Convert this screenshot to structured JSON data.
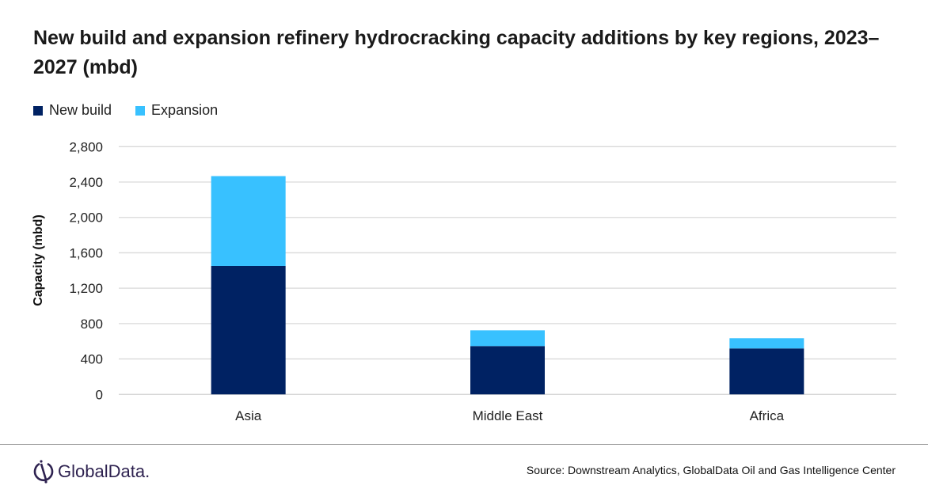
{
  "title": "New build and expansion refinery hydrocracking capacity additions by key regions, 2023–2027 (mbd)",
  "footer": {
    "logo_text": "GlobalData.",
    "source": "Source:  Downstream Analytics, GlobalData Oil and Gas Intelligence Center"
  },
  "chart_data": {
    "type": "bar",
    "stacked": true,
    "title": "New build and expansion refinery hydrocracking capacity additions by key regions, 2023–2027 (mbd)",
    "xlabel": "",
    "ylabel": "Capacity (mbd)",
    "ylim": [
      0,
      2800
    ],
    "yticks": [
      0,
      400,
      800,
      1200,
      1600,
      2000,
      2400,
      2800
    ],
    "ytick_labels": [
      "0",
      "400",
      "800",
      "1,200",
      "1,600",
      "2,000",
      "2,400",
      "2,800"
    ],
    "grid": true,
    "legend_position": "top-left",
    "categories": [
      "Asia",
      "Middle East",
      "Africa"
    ],
    "series": [
      {
        "name": "New build",
        "color": "#002263",
        "values": [
          1452,
          546,
          519
        ]
      },
      {
        "name": "Expansion",
        "color": "#38C1FF",
        "values": [
          1015,
          178,
          116
        ]
      }
    ]
  }
}
